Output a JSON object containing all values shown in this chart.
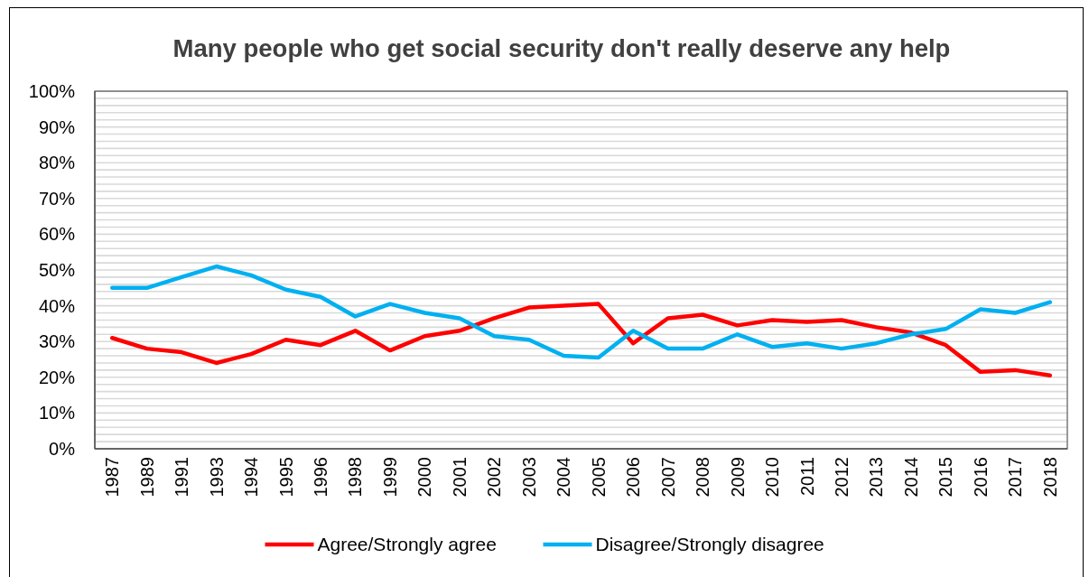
{
  "chart_data": {
    "type": "line",
    "title": "Many people who get social security don't really deserve any help",
    "categories": [
      "1987",
      "1989",
      "1991",
      "1993",
      "1994",
      "1995",
      "1996",
      "1998",
      "1999",
      "2000",
      "2001",
      "2002",
      "2003",
      "2004",
      "2005",
      "2006",
      "2007",
      "2008",
      "2009",
      "2010",
      "2011",
      "2012",
      "2013",
      "2014",
      "2015",
      "2016",
      "2017",
      "2018"
    ],
    "series": [
      {
        "name": "Agree/Strongly agree",
        "color": "#ff0000",
        "values": [
          31,
          28,
          27,
          24,
          26.5,
          30.5,
          29,
          33,
          27.5,
          31.5,
          33,
          36.5,
          39.5,
          40,
          40.5,
          29.5,
          36.5,
          37.5,
          34.5,
          36,
          35.5,
          36,
          34,
          32.5,
          29,
          21.5,
          22,
          20.5
        ]
      },
      {
        "name": "Disagree/Strongly disagree",
        "color": "#00b0f0",
        "values": [
          45,
          45,
          48,
          51,
          48.5,
          44.5,
          42.5,
          37,
          40.5,
          38,
          36.5,
          31.5,
          30.5,
          26,
          25.5,
          33,
          28,
          28,
          32,
          28.5,
          29.5,
          28,
          29.5,
          32,
          33.5,
          39,
          38,
          41
        ]
      }
    ],
    "ylim": [
      0,
      100
    ],
    "yticks": [
      {
        "value": 0,
        "label": "0%"
      },
      {
        "value": 2,
        "label": null
      },
      {
        "value": 4,
        "label": null
      },
      {
        "value": 6,
        "label": null
      },
      {
        "value": 8,
        "label": null
      },
      {
        "value": 10,
        "label": "10%"
      },
      {
        "value": 12,
        "label": null
      },
      {
        "value": 14,
        "label": null
      },
      {
        "value": 16,
        "label": null
      },
      {
        "value": 18,
        "label": null
      },
      {
        "value": 20,
        "label": "20%"
      },
      {
        "value": 22,
        "label": null
      },
      {
        "value": 24,
        "label": null
      },
      {
        "value": 26,
        "label": null
      },
      {
        "value": 28,
        "label": null
      },
      {
        "value": 30,
        "label": "30%"
      },
      {
        "value": 32,
        "label": null
      },
      {
        "value": 34,
        "label": null
      },
      {
        "value": 36,
        "label": null
      },
      {
        "value": 38,
        "label": null
      },
      {
        "value": 40,
        "label": "40%"
      },
      {
        "value": 42,
        "label": null
      },
      {
        "value": 44,
        "label": null
      },
      {
        "value": 46,
        "label": null
      },
      {
        "value": 48,
        "label": null
      },
      {
        "value": 50,
        "label": "50%"
      },
      {
        "value": 52,
        "label": null
      },
      {
        "value": 54,
        "label": null
      },
      {
        "value": 56,
        "label": null
      },
      {
        "value": 58,
        "label": null
      },
      {
        "value": 60,
        "label": "60%"
      },
      {
        "value": 62,
        "label": null
      },
      {
        "value": 64,
        "label": null
      },
      {
        "value": 66,
        "label": null
      },
      {
        "value": 68,
        "label": null
      },
      {
        "value": 70,
        "label": "70%"
      },
      {
        "value": 72,
        "label": null
      },
      {
        "value": 74,
        "label": null
      },
      {
        "value": 76,
        "label": null
      },
      {
        "value": 78,
        "label": null
      },
      {
        "value": 80,
        "label": "80%"
      },
      {
        "value": 82,
        "label": null
      },
      {
        "value": 84,
        "label": null
      },
      {
        "value": 86,
        "label": null
      },
      {
        "value": 88,
        "label": null
      },
      {
        "value": 90,
        "label": "90%"
      },
      {
        "value": 92,
        "label": null
      },
      {
        "value": 94,
        "label": null
      },
      {
        "value": 96,
        "label": null
      },
      {
        "value": 98,
        "label": null
      },
      {
        "value": 100,
        "label": "100%"
      }
    ],
    "grid": "y",
    "legend": "bottom"
  }
}
